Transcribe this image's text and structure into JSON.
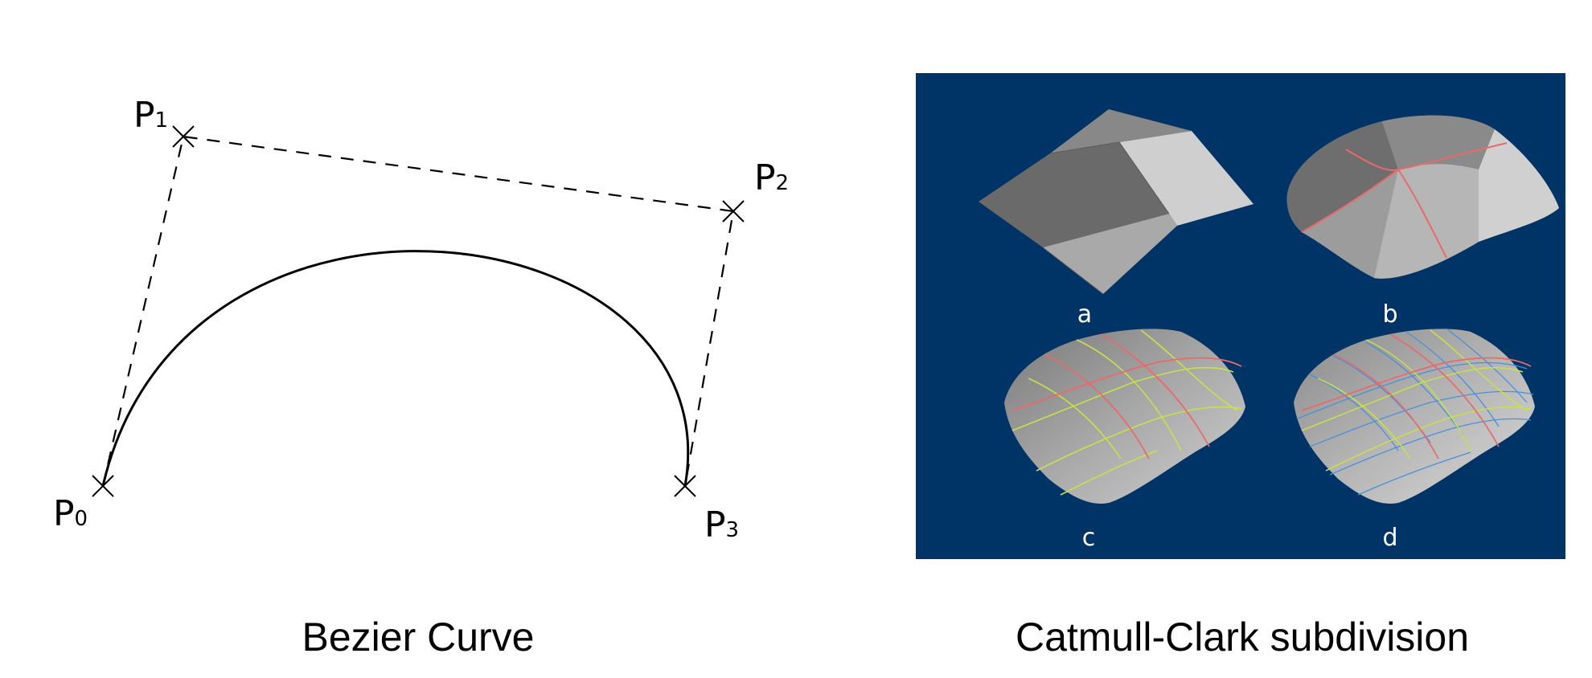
{
  "bezier": {
    "caption": "Bezier Curve",
    "points": [
      {
        "name": "P",
        "sub": "0"
      },
      {
        "name": "P",
        "sub": "1"
      },
      {
        "name": "P",
        "sub": "2"
      },
      {
        "name": "P",
        "sub": "3"
      }
    ]
  },
  "catmull_clark": {
    "caption": "Catmull-Clark subdivision",
    "background": "#003366",
    "steps": [
      {
        "label": "a"
      },
      {
        "label": "b"
      },
      {
        "label": "c"
      },
      {
        "label": "d"
      }
    ],
    "edge_colors": {
      "level1": "#e86a6a",
      "level2": "#c8e04a",
      "level3": "#4a90d9"
    }
  }
}
